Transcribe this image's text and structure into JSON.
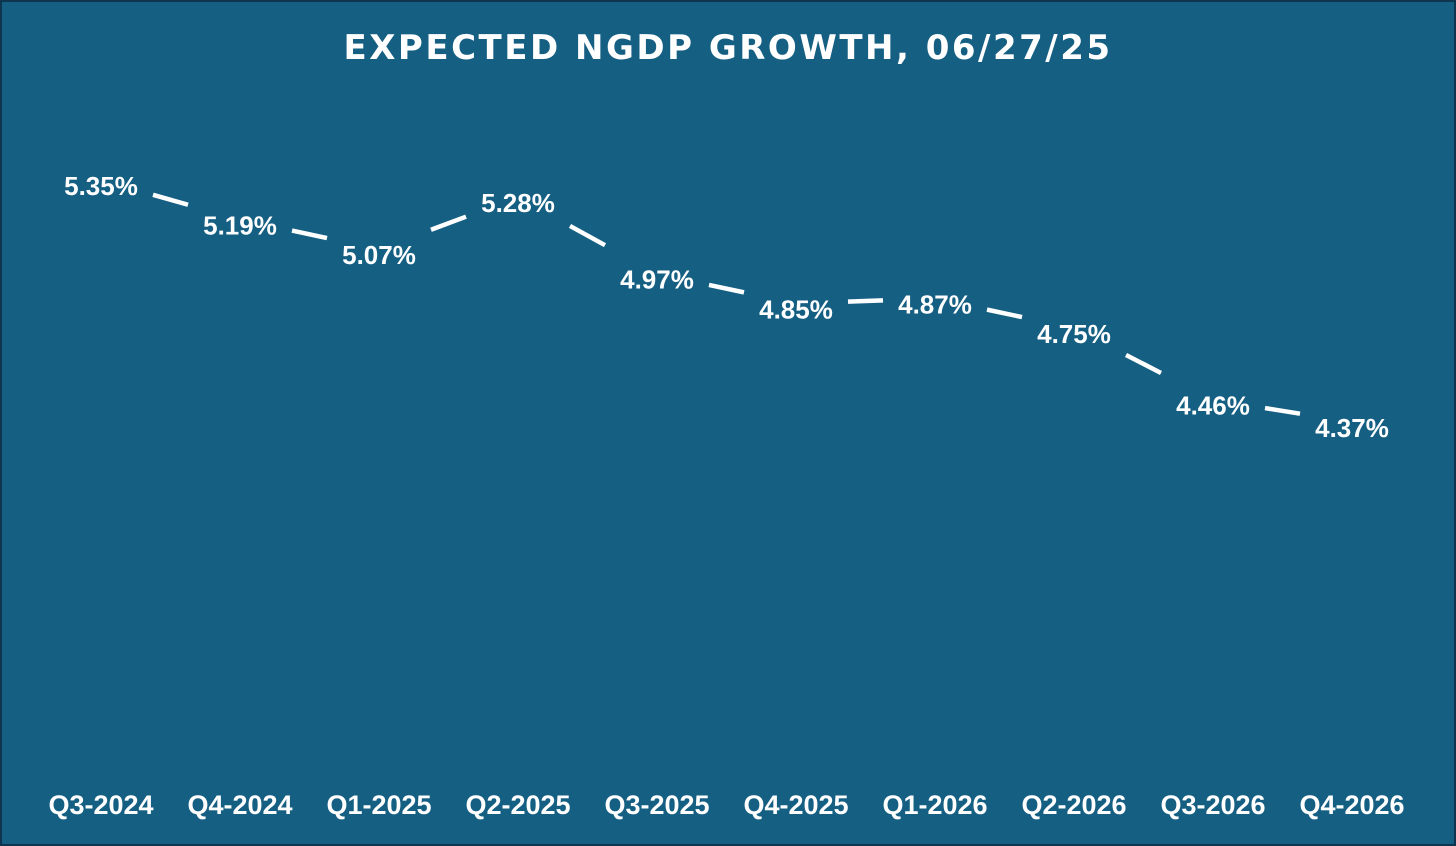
{
  "colors": {
    "background": "#155f83",
    "text": "#ffffff",
    "line": "#ffffff",
    "drop_line": "#ffffff"
  },
  "chart_data": {
    "type": "line",
    "title": "EXPECTED NGDP GROWTH, 06/27/25",
    "categories": [
      "Q3-2024",
      "Q4-2024",
      "Q1-2025",
      "Q2-2025",
      "Q3-2025",
      "Q4-2025",
      "Q1-2026",
      "Q2-2026",
      "Q3-2026",
      "Q4-2026"
    ],
    "values": [
      5.35,
      5.19,
      5.07,
      5.28,
      4.97,
      4.85,
      4.87,
      4.75,
      4.46,
      4.37
    ],
    "data_labels": [
      "5.35%",
      "5.19%",
      "5.07%",
      "5.28%",
      "4.97%",
      "4.85%",
      "4.87%",
      "4.75%",
      "4.46%",
      "4.37%"
    ],
    "xlabel": "",
    "ylabel": "",
    "y_axis_visible": false,
    "grid": false,
    "legend": "none",
    "drop_lines": true
  }
}
